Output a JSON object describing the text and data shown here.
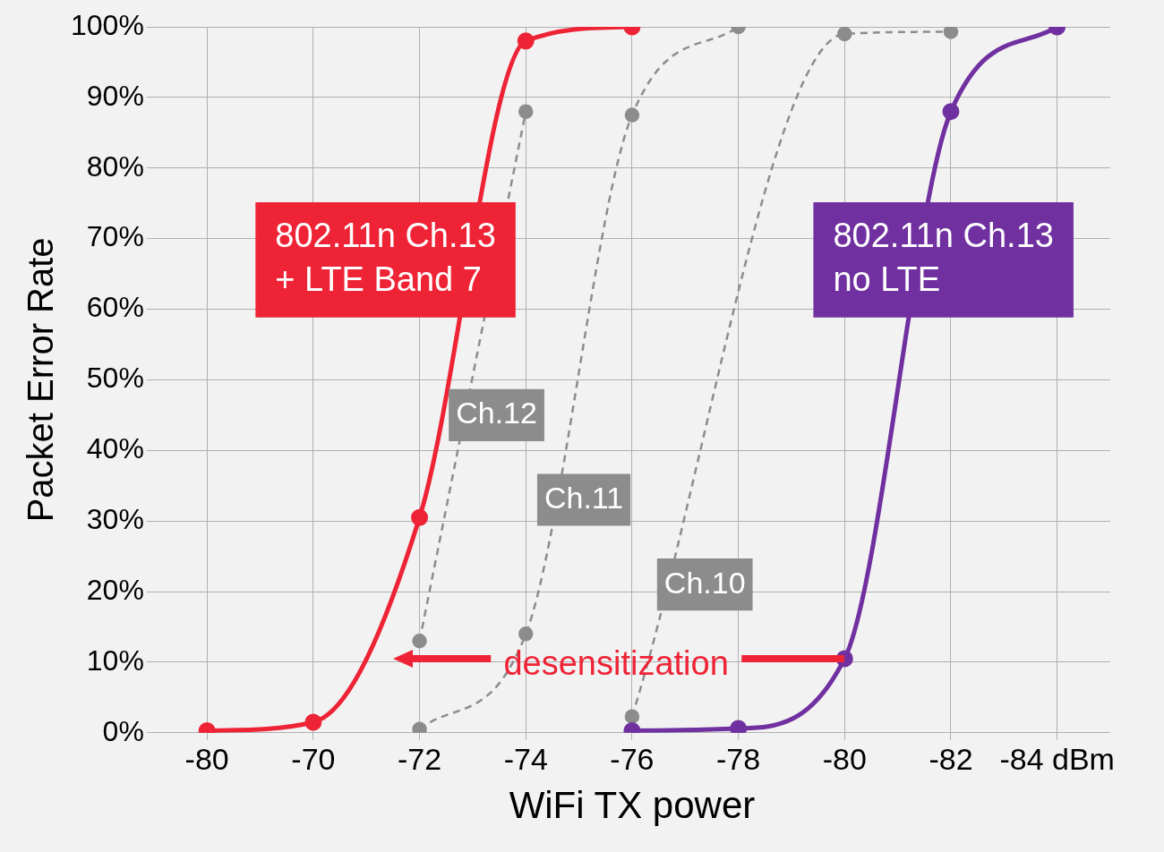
{
  "chart_data": {
    "type": "line",
    "xlabel": "WiFi TX power",
    "ylabel": "Packet Error Rate",
    "categories": [
      "-80",
      "-70",
      "-72",
      "-74",
      "-76",
      "-78",
      "-80",
      "-82",
      "-84 dBm"
    ],
    "series": [
      {
        "name": "Ch.12",
        "color": "#8c8c8c",
        "line_style": "dashed",
        "values": [
          null,
          null,
          13,
          88,
          null,
          null,
          null,
          null,
          null
        ]
      },
      {
        "name": "Ch.11",
        "color": "#8c8c8c",
        "line_style": "dashed",
        "values": [
          null,
          null,
          0.5,
          14,
          87.5,
          100,
          null,
          null,
          null
        ]
      },
      {
        "name": "Ch.10",
        "color": "#8c8c8c",
        "line_style": "dashed",
        "values": [
          null,
          null,
          null,
          null,
          2.3,
          null,
          99,
          99.3,
          null
        ]
      },
      {
        "name": "802.11n Ch.13\n+ LTE Band 7",
        "color": "#ee2436",
        "line_style": "solid",
        "values": [
          0.3,
          1.5,
          30.5,
          98,
          100,
          null,
          null,
          null,
          null
        ]
      },
      {
        "name": "802.11n Ch.13\nno LTE",
        "color": "#7030a0",
        "line_style": "solid",
        "values": [
          null,
          null,
          null,
          null,
          0.3,
          0.6,
          10.5,
          88,
          100
        ]
      }
    ],
    "ylim": [
      0,
      100
    ],
    "yticks": [
      {
        "value": 0,
        "label": "0%"
      },
      {
        "value": 10,
        "label": "10%"
      },
      {
        "value": 20,
        "label": "20%"
      },
      {
        "value": 30,
        "label": "30%"
      },
      {
        "value": 40,
        "label": "40%"
      },
      {
        "value": 50,
        "label": "50%"
      },
      {
        "value": 60,
        "label": "60%"
      },
      {
        "value": 70,
        "label": "70%"
      },
      {
        "value": 80,
        "label": "80%"
      },
      {
        "value": 90,
        "label": "90%"
      },
      {
        "value": 100,
        "label": "100%"
      }
    ],
    "annotations": [
      "desensitization"
    ],
    "grid": true,
    "legend": false,
    "marker": "circle"
  }
}
